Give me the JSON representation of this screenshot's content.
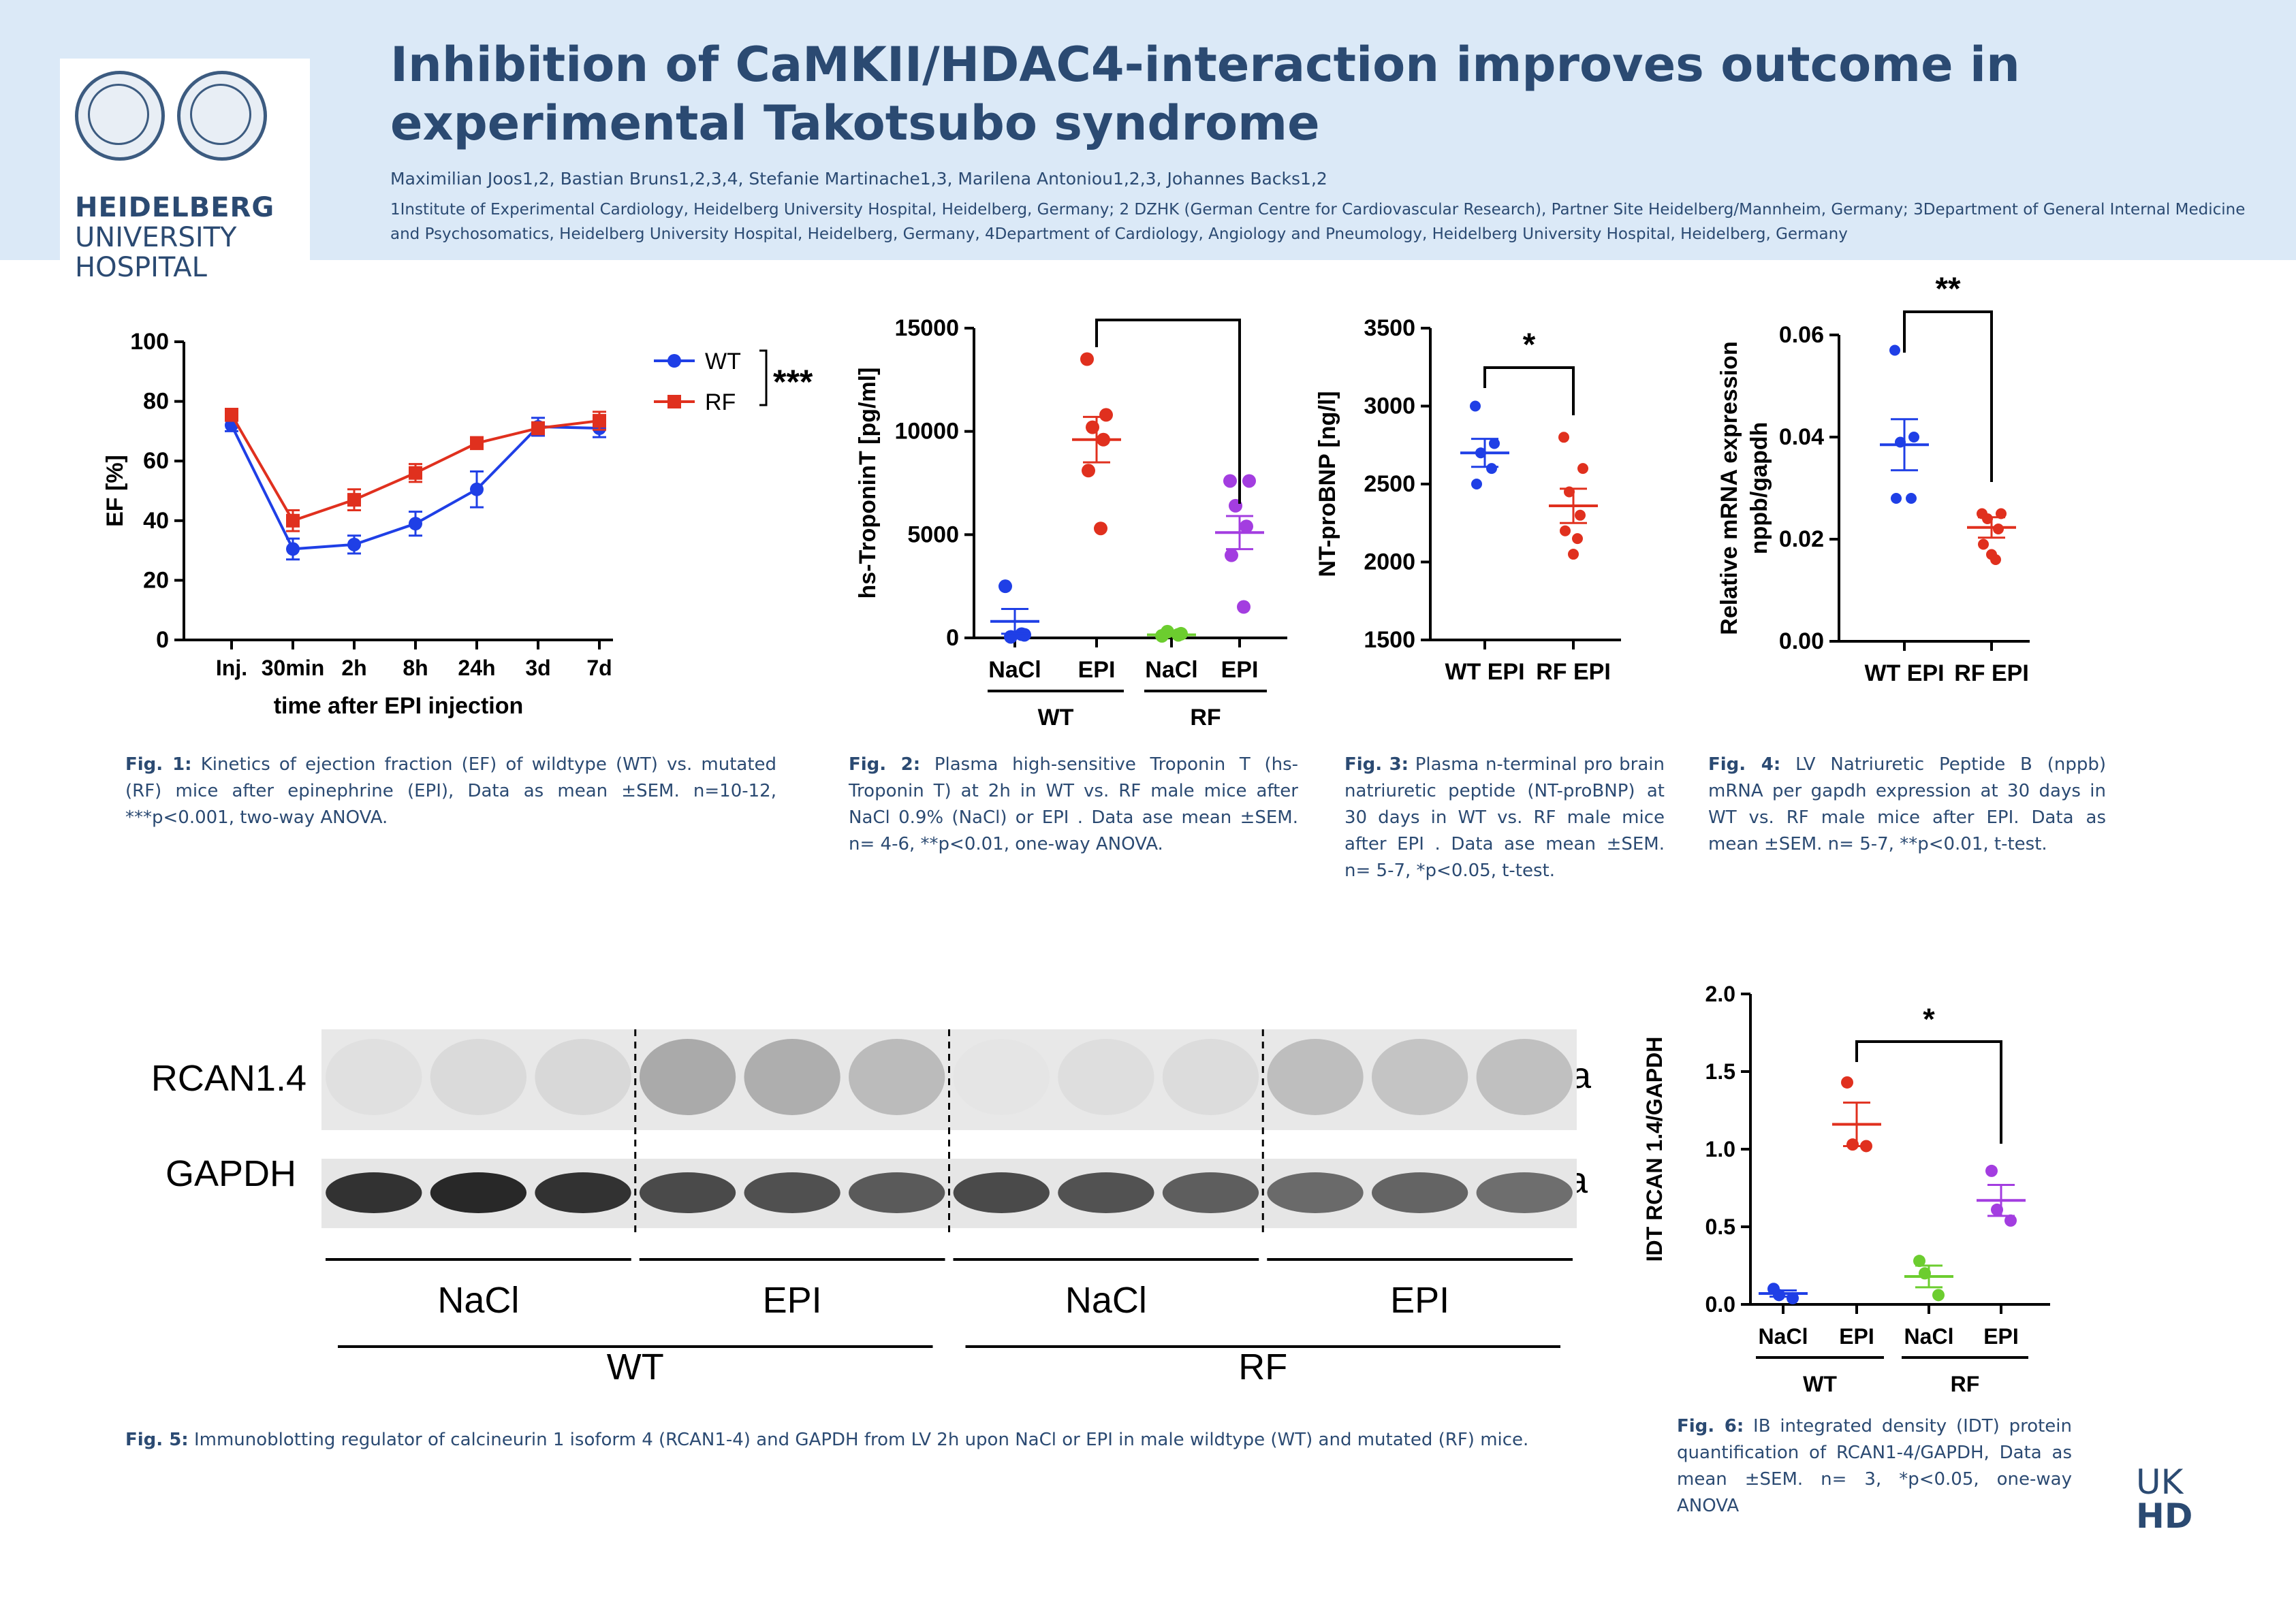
{
  "poster": {
    "title": "Inhibition of CaMKII/HDAC4-interaction improves outcome in experimental Takotsubo syndrome",
    "authors": "Maximilian Joos1,2, Bastian Bruns1,2,3,4, Stefanie Martinache1,3, Marilena Antoniou1,2,3, Johannes Backs1,2",
    "affiliations": "1Institute of Experimental Cardiology, Heidelberg University Hospital, Heidelberg, Germany; 2 DZHK (German Centre for Cardiovascular Research), Partner Site Heidelberg/Mannheim, Germany; 3Department of General Internal Medicine and Psychosomatics, Heidelberg University Hospital, Heidelberg, Germany, 4Department of Cardiology, Angiology and Pneumology, Heidelberg University Hospital, Heidelberg, Germany",
    "logo_line1": "HEIDELBERG",
    "logo_line2": "UNIVERSITY",
    "logo_line3": "HOSPITAL",
    "ukhd_line1": "UK",
    "ukhd_line2": "HD",
    "accent_color": "#2b4a72",
    "header_bg": "#dbe9f7"
  },
  "captions": {
    "fig1_label": "Fig. 1:",
    "fig1": "Kinetics of ejection fraction (EF) of wildtype (WT) vs. mutated (RF) mice after epinephrine (EPI), Data as mean ±SEM. n=10-12, ***p<0.001, two-way ANOVA.",
    "fig2_label": "Fig. 2:",
    "fig2": "Plasma high-sensitive Troponin T (hs-Troponin T) at 2h in WT vs. RF male mice after NaCl 0.9% (NaCl) or EPI . Data ase mean ±SEM. n= 4-6, **p<0.01, one-way ANOVA.",
    "fig3_label": "Fig. 3:",
    "fig3": "Plasma n-terminal pro brain natriuretic peptide (NT-proBNP) at 30 days in WT vs. RF male mice after EPI . Data ase mean ±SEM. n= 5-7, *p<0.05, t-test.",
    "fig4_label": "Fig. 4:",
    "fig4": "LV Natriuretic Peptide B (nppb) mRNA per gapdh expression at 30 days in WT vs. RF male mice after EPI. Data as mean ±SEM. n= 5-7, **p<0.01, t-test.",
    "fig5_label": "Fig. 5:",
    "fig5": "Immunoblotting regulator of calcineurin 1 isoform 4 (RCAN1-4) and GAPDH from LV 2h upon NaCl or EPI in male wildtype (WT) and mutated (RF) mice.",
    "fig6_label": "Fig. 6:",
    "fig6": "IB integrated density (IDT) protein quantification of RCAN1-4/GAPDH, Data as mean ±SEM. n= 3, *p<0.05, one-way ANOVA"
  },
  "chart_data": [
    {
      "type": "line",
      "xlabel": "time after EPI injection",
      "ylabel": "EF [%]",
      "ylim": [
        0,
        100
      ],
      "yticks": [
        "0",
        "20",
        "40",
        "60",
        "80",
        "100"
      ],
      "categories": [
        "Inj.",
        "30min",
        "2h",
        "8h",
        "24h",
        "3d",
        "7d"
      ],
      "series": [
        {
          "name": "WT",
          "color": "#1f3fe6",
          "values": [
            72,
            30.5,
            32,
            39,
            50.5,
            71.5,
            71
          ],
          "sem": [
            2,
            3.5,
            3,
            4,
            6,
            3,
            3
          ]
        },
        {
          "name": "RF",
          "color": "#e0301e",
          "values": [
            75.5,
            40,
            47,
            56,
            66,
            71,
            73.5
          ],
          "sem": [
            2,
            3.5,
            3.5,
            3,
            2,
            2,
            3
          ]
        }
      ],
      "significance": "***",
      "legend": "top-right"
    },
    {
      "type": "scatter",
      "ylabel": "hs-TroponinT [pg/ml]",
      "ylim": [
        0,
        15000
      ],
      "yticks": [
        "0",
        "5000",
        "10000",
        "15000"
      ],
      "categories": [
        "NaCl",
        "EPI",
        "NaCl",
        "EPI"
      ],
      "group_labels": [
        "WT",
        "RF"
      ],
      "groups": [
        {
          "category": "NaCl",
          "color": "#1f3fe6",
          "mean": 800,
          "sem": 600,
          "points": [
            2500,
            150,
            50,
            180
          ]
        },
        {
          "category": "EPI",
          "color": "#e0301e",
          "mean": 9600,
          "sem": 1100,
          "points": [
            13500,
            10800,
            10200,
            9600,
            8100,
            5300
          ]
        },
        {
          "category": "NaCl",
          "color": "#6ccd2f",
          "mean": 150,
          "sem": 50,
          "points": [
            100,
            200,
            300,
            150
          ]
        },
        {
          "category": "EPI",
          "color": "#a33de0",
          "mean": 5100,
          "sem": 800,
          "points": [
            7600,
            7600,
            6400,
            5400,
            4000,
            1500
          ]
        }
      ],
      "significance": "**"
    },
    {
      "type": "scatter",
      "ylabel": "NT-proBNP [ng/l]",
      "ylim": [
        1500,
        3500
      ],
      "yticks": [
        "1500",
        "2000",
        "2500",
        "3000",
        "3500"
      ],
      "categories": [
        "WT EPI",
        "RF EPI"
      ],
      "groups": [
        {
          "category": "WT EPI",
          "color": "#1f3fe6",
          "mean": 2700,
          "sem": 90,
          "points": [
            3000,
            2760,
            2700,
            2600,
            2500
          ]
        },
        {
          "category": "RF EPI",
          "color": "#e0301e",
          "mean": 2360,
          "sem": 110,
          "points": [
            2800,
            2600,
            2450,
            2300,
            2200,
            2150,
            2050
          ]
        }
      ],
      "significance": "*"
    },
    {
      "type": "scatter",
      "ylabel": "Relative mRNA expression nppb/gapdh",
      "ylim": [
        0,
        0.06
      ],
      "yticks": [
        "0.00",
        "0.02",
        "0.04",
        "0.06"
      ],
      "categories": [
        "WT EPI",
        "RF EPI"
      ],
      "groups": [
        {
          "category": "WT EPI",
          "color": "#1f3fe6",
          "mean": 0.0385,
          "sem": 0.005,
          "points": [
            0.057,
            0.04,
            0.039,
            0.028,
            0.028
          ]
        },
        {
          "category": "RF EPI",
          "color": "#e0301e",
          "mean": 0.0223,
          "sem": 0.002,
          "points": [
            0.025,
            0.025,
            0.024,
            0.022,
            0.019,
            0.016,
            0.017
          ]
        }
      ],
      "significance": "**"
    },
    {
      "type": "scatter",
      "ylabel": "IDT RCAN 1.4/GAPDH",
      "ylim": [
        0,
        2.0
      ],
      "yticks": [
        "0.0",
        "0.5",
        "1.0",
        "1.5",
        "2.0"
      ],
      "categories": [
        "NaCl",
        "EPI",
        "NaCl",
        "EPI"
      ],
      "group_labels": [
        "WT",
        "RF"
      ],
      "groups": [
        {
          "category": "NaCl",
          "color": "#1f3fe6",
          "mean": 0.07,
          "sem": 0.02,
          "points": [
            0.1,
            0.04,
            0.06
          ]
        },
        {
          "category": "EPI",
          "color": "#e0301e",
          "mean": 1.16,
          "sem": 0.14,
          "points": [
            1.43,
            1.02,
            1.03
          ]
        },
        {
          "category": "NaCl",
          "color": "#6ccd2f",
          "mean": 0.18,
          "sem": 0.07,
          "points": [
            0.28,
            0.06,
            0.2
          ]
        },
        {
          "category": "EPI",
          "color": "#a33de0",
          "mean": 0.67,
          "sem": 0.1,
          "points": [
            0.86,
            0.54,
            0.61
          ]
        }
      ],
      "significance": "*"
    }
  ],
  "blot": {
    "row1_label": "RCAN1.4",
    "row2_label": "GAPDH",
    "row1_size": "26kDa",
    "row2_size": "35kDa",
    "lanes": [
      "NaCl",
      "EPI",
      "NaCl",
      "EPI"
    ],
    "groups": [
      "WT",
      "RF"
    ],
    "rcan_intensity": [
      0.08,
      0.14,
      0.16,
      0.62,
      0.58,
      0.45,
      0.03,
      0.1,
      0.12,
      0.42,
      0.36,
      0.4
    ],
    "gapdh_intensity": [
      0.9,
      0.95,
      0.9,
      0.78,
      0.75,
      0.7,
      0.78,
      0.74,
      0.68,
      0.62,
      0.65,
      0.6
    ]
  }
}
